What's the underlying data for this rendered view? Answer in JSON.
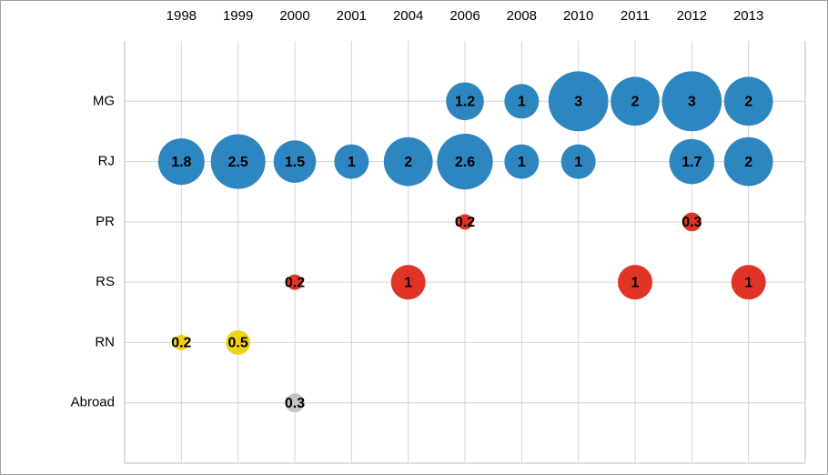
{
  "chart_data": {
    "type": "bubble",
    "categories": [
      "1998",
      "1999",
      "2000",
      "2001",
      "2004",
      "2006",
      "2008",
      "2010",
      "2011",
      "2012",
      "2013"
    ],
    "series": [
      {
        "name": "MG",
        "color": "#2e86c1",
        "values": [
          null,
          null,
          null,
          null,
          null,
          1.2,
          1,
          3,
          2,
          3,
          2
        ]
      },
      {
        "name": "RJ",
        "color": "#2e86c1",
        "values": [
          1.8,
          2.5,
          1.5,
          1,
          2,
          2.6,
          1,
          1,
          null,
          1.7,
          2
        ]
      },
      {
        "name": "PR",
        "color": "#e03426",
        "values": [
          null,
          null,
          null,
          null,
          null,
          0.2,
          null,
          null,
          null,
          0.3,
          null
        ]
      },
      {
        "name": "RS",
        "color": "#e03426",
        "values": [
          null,
          null,
          0.2,
          null,
          1,
          null,
          null,
          null,
          1,
          null,
          1
        ]
      },
      {
        "name": "RN",
        "color": "#f2d215",
        "values": [
          0.2,
          0.5,
          null,
          null,
          null,
          null,
          null,
          null,
          null,
          null,
          null
        ]
      },
      {
        "name": "Abroad",
        "color": "#c4c4c0",
        "values": [
          null,
          null,
          0.3,
          null,
          null,
          null,
          null,
          null,
          null,
          null,
          null
        ]
      }
    ],
    "grid": true
  }
}
